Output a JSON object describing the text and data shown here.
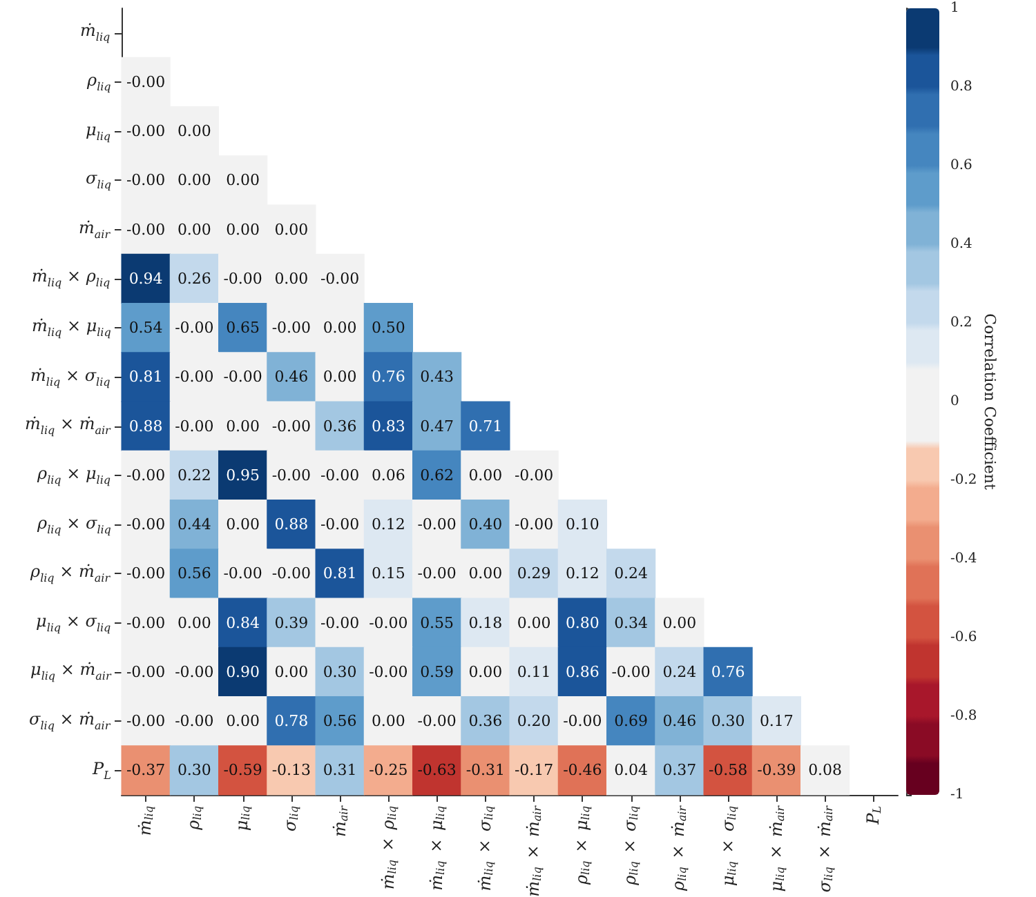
{
  "chart_data": {
    "type": "heatmap",
    "clabel": "Correlation Coefficient",
    "categories": [
      "ṁ$_{liq}$",
      "ρ$_{liq}$",
      "μ$_{liq}$",
      "σ$_{liq}$",
      "ṁ$_{air}$",
      "ṁ$_{liq}$ × ρ$_{liq}$",
      "ṁ$_{liq}$ × μ$_{liq}$",
      "ṁ$_{liq}$ × σ$_{liq}$",
      "ṁ$_{liq}$ × ṁ$_{air}$",
      "ρ$_{liq}$ × μ$_{liq}$",
      "ρ$_{liq}$ × σ$_{liq}$",
      "ρ$_{liq}$ × ṁ$_{air}$",
      "μ$_{liq}$ × σ$_{liq}$",
      "μ$_{liq}$ × ṁ$_{air}$",
      "σ$_{liq}$ × ṁ$_{air}$",
      "P$_{L}$"
    ],
    "y_categories": [
      "ṁ$_{liq}$",
      "ρ$_{liq}$",
      "μ$_{liq}$",
      "σ$_{liq}$",
      "ṁ$_{air}$",
      "ṁ$_{liq}$ × ρ$_{liq}$",
      "ṁ$_{liq}$ × μ$_{liq}$",
      "ṁ$_{liq}$ × σ$_{liq}$",
      "ṁ$_{liq}$ × ṁ$_{air}$",
      "ρ$_{liq}$ × μ$_{liq}$",
      "ρ$_{liq}$ × σ$_{liq}$",
      "ρ$_{liq}$ × ṁ$_{air}$",
      "μ$_{liq}$ × σ$_{liq}$",
      "μ$_{liq}$ × ṁ$_{air}$",
      "σ$_{liq}$ × ṁ$_{air}$",
      "P$_{L}$"
    ],
    "cells": [
      [
        null,
        null,
        null,
        null,
        null,
        null,
        null,
        null,
        null,
        null,
        null,
        null,
        null,
        null,
        null,
        null
      ],
      [
        0,
        null,
        null,
        null,
        null,
        null,
        null,
        null,
        null,
        null,
        null,
        null,
        null,
        null,
        null,
        null
      ],
      [
        0,
        0,
        null,
        null,
        null,
        null,
        null,
        null,
        null,
        null,
        null,
        null,
        null,
        null,
        null,
        null
      ],
      [
        0,
        0,
        0,
        null,
        null,
        null,
        null,
        null,
        null,
        null,
        null,
        null,
        null,
        null,
        null,
        null
      ],
      [
        0,
        0,
        0,
        0,
        null,
        null,
        null,
        null,
        null,
        null,
        null,
        null,
        null,
        null,
        null,
        null
      ],
      [
        0.94,
        0.26,
        0,
        0,
        0,
        null,
        null,
        null,
        null,
        null,
        null,
        null,
        null,
        null,
        null,
        null
      ],
      [
        0.54,
        0,
        0.65,
        0,
        0,
        0.5,
        null,
        null,
        null,
        null,
        null,
        null,
        null,
        null,
        null,
        null
      ],
      [
        0.81,
        0,
        0,
        0.46,
        0,
        0.76,
        0.43,
        null,
        null,
        null,
        null,
        null,
        null,
        null,
        null,
        null
      ],
      [
        0.88,
        0,
        0,
        0,
        0.36,
        0.83,
        0.47,
        0.71,
        null,
        null,
        null,
        null,
        null,
        null,
        null,
        null
      ],
      [
        0,
        0.22,
        0.95,
        0,
        0,
        0.06,
        0.62,
        0,
        0,
        null,
        null,
        null,
        null,
        null,
        null,
        null
      ],
      [
        0,
        0.44,
        0,
        0.88,
        0,
        0.12,
        0,
        0.4,
        0,
        0.1,
        null,
        null,
        null,
        null,
        null,
        null
      ],
      [
        0,
        0.56,
        0,
        0,
        0.81,
        0.15,
        0,
        0,
        0.29,
        0.12,
        0.24,
        null,
        null,
        null,
        null,
        null
      ],
      [
        0,
        0,
        0.84,
        0.39,
        0,
        0,
        0.55,
        0.18,
        0,
        0.8,
        0.34,
        0,
        null,
        null,
        null,
        null
      ],
      [
        0,
        0,
        0.9,
        0,
        0.3,
        0,
        0.59,
        0,
        0.11,
        0.86,
        0,
        0.24,
        0.76,
        null,
        null,
        null
      ],
      [
        0,
        0,
        0,
        0.78,
        0.56,
        0,
        0,
        0.36,
        0.2,
        0,
        0.69,
        0.46,
        0.3,
        0.17,
        null,
        null
      ],
      [
        -0.37,
        0.3,
        -0.59,
        -0.13,
        0.31,
        -0.25,
        -0.63,
        -0.31,
        -0.17,
        -0.46,
        0.04,
        0.37,
        -0.58,
        -0.39,
        0.08,
        null
      ]
    ],
    "cell_labels": [
      [
        null,
        null,
        null,
        null,
        null,
        null,
        null,
        null,
        null,
        null,
        null,
        null,
        null,
        null,
        null,
        null
      ],
      [
        "-0.00",
        null,
        null,
        null,
        null,
        null,
        null,
        null,
        null,
        null,
        null,
        null,
        null,
        null,
        null,
        null
      ],
      [
        "-0.00",
        "0.00",
        null,
        null,
        null,
        null,
        null,
        null,
        null,
        null,
        null,
        null,
        null,
        null,
        null,
        null
      ],
      [
        "-0.00",
        "0.00",
        "0.00",
        null,
        null,
        null,
        null,
        null,
        null,
        null,
        null,
        null,
        null,
        null,
        null,
        null
      ],
      [
        "-0.00",
        "0.00",
        "0.00",
        "0.00",
        null,
        null,
        null,
        null,
        null,
        null,
        null,
        null,
        null,
        null,
        null,
        null
      ],
      [
        "0.94",
        "0.26",
        "-0.00",
        "0.00",
        "-0.00",
        null,
        null,
        null,
        null,
        null,
        null,
        null,
        null,
        null,
        null,
        null
      ],
      [
        "0.54",
        "-0.00",
        "0.65",
        "-0.00",
        "0.00",
        "0.50",
        null,
        null,
        null,
        null,
        null,
        null,
        null,
        null,
        null,
        null
      ],
      [
        "0.81",
        "-0.00",
        "-0.00",
        "0.46",
        "0.00",
        "0.76",
        "0.43",
        null,
        null,
        null,
        null,
        null,
        null,
        null,
        null,
        null
      ],
      [
        "0.88",
        "-0.00",
        "0.00",
        "-0.00",
        "0.36",
        "0.83",
        "0.47",
        "0.71",
        null,
        null,
        null,
        null,
        null,
        null,
        null,
        null
      ],
      [
        "-0.00",
        "0.22",
        "0.95",
        "-0.00",
        "-0.00",
        "0.06",
        "0.62",
        "0.00",
        "-0.00",
        null,
        null,
        null,
        null,
        null,
        null,
        null
      ],
      [
        "-0.00",
        "0.44",
        "0.00",
        "0.88",
        "-0.00",
        "0.12",
        "-0.00",
        "0.40",
        "-0.00",
        "0.10",
        null,
        null,
        null,
        null,
        null,
        null
      ],
      [
        "-0.00",
        "0.56",
        "-0.00",
        "-0.00",
        "0.81",
        "0.15",
        "-0.00",
        "0.00",
        "0.29",
        "0.12",
        "0.24",
        null,
        null,
        null,
        null,
        null
      ],
      [
        "-0.00",
        "0.00",
        "0.84",
        "0.39",
        "-0.00",
        "-0.00",
        "0.55",
        "0.18",
        "0.00",
        "0.80",
        "0.34",
        "0.00",
        null,
        null,
        null,
        null
      ],
      [
        "-0.00",
        "-0.00",
        "0.90",
        "0.00",
        "0.30",
        "-0.00",
        "0.59",
        "0.00",
        "0.11",
        "0.86",
        "-0.00",
        "0.24",
        "0.76",
        null,
        null,
        null
      ],
      [
        "-0.00",
        "-0.00",
        "0.00",
        "0.78",
        "0.56",
        "0.00",
        "-0.00",
        "0.36",
        "0.20",
        "-0.00",
        "0.69",
        "0.46",
        "0.30",
        "0.17",
        null,
        null
      ],
      [
        "-0.37",
        "0.30",
        "-0.59",
        "-0.13",
        "0.31",
        "-0.25",
        "-0.63",
        "-0.31",
        "-0.17",
        "-0.46",
        "0.04",
        "0.37",
        "-0.58",
        "-0.39",
        "0.08",
        null
      ]
    ],
    "clim": [
      -1,
      1
    ],
    "cticks": [
      -1,
      -0.8,
      -0.6,
      -0.4,
      -0.2,
      0,
      0.2,
      0.4,
      0.6,
      0.8,
      1
    ]
  }
}
